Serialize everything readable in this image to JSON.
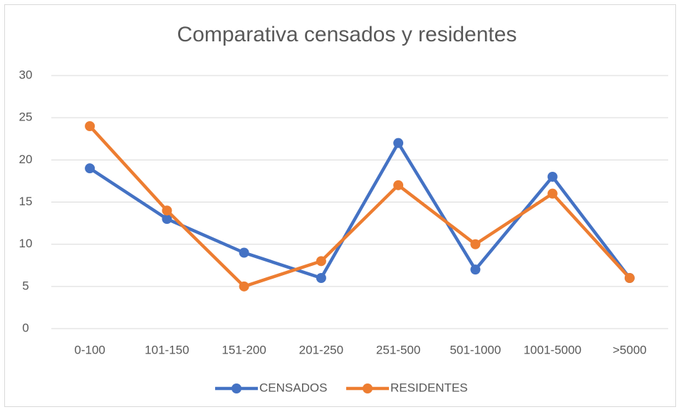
{
  "chart_data": {
    "type": "line",
    "title": "Comparativa censados y residentes",
    "categories": [
      "0-100",
      "101-150",
      "151-200",
      "201-250",
      "251-500",
      "501-1000",
      "1001-5000",
      ">5000"
    ],
    "series": [
      {
        "name": "CENSADOS",
        "color": "#4472c4",
        "values": [
          19,
          13,
          9,
          6,
          22,
          7,
          18,
          6
        ]
      },
      {
        "name": "RESIDENTES",
        "color": "#ed7d31",
        "values": [
          24,
          14,
          5,
          8,
          17,
          10,
          16,
          6
        ]
      }
    ],
    "ylim": [
      0,
      30
    ],
    "yticks": [
      0,
      5,
      10,
      15,
      20,
      25,
      30
    ],
    "grid": true,
    "legend": "bottom"
  }
}
